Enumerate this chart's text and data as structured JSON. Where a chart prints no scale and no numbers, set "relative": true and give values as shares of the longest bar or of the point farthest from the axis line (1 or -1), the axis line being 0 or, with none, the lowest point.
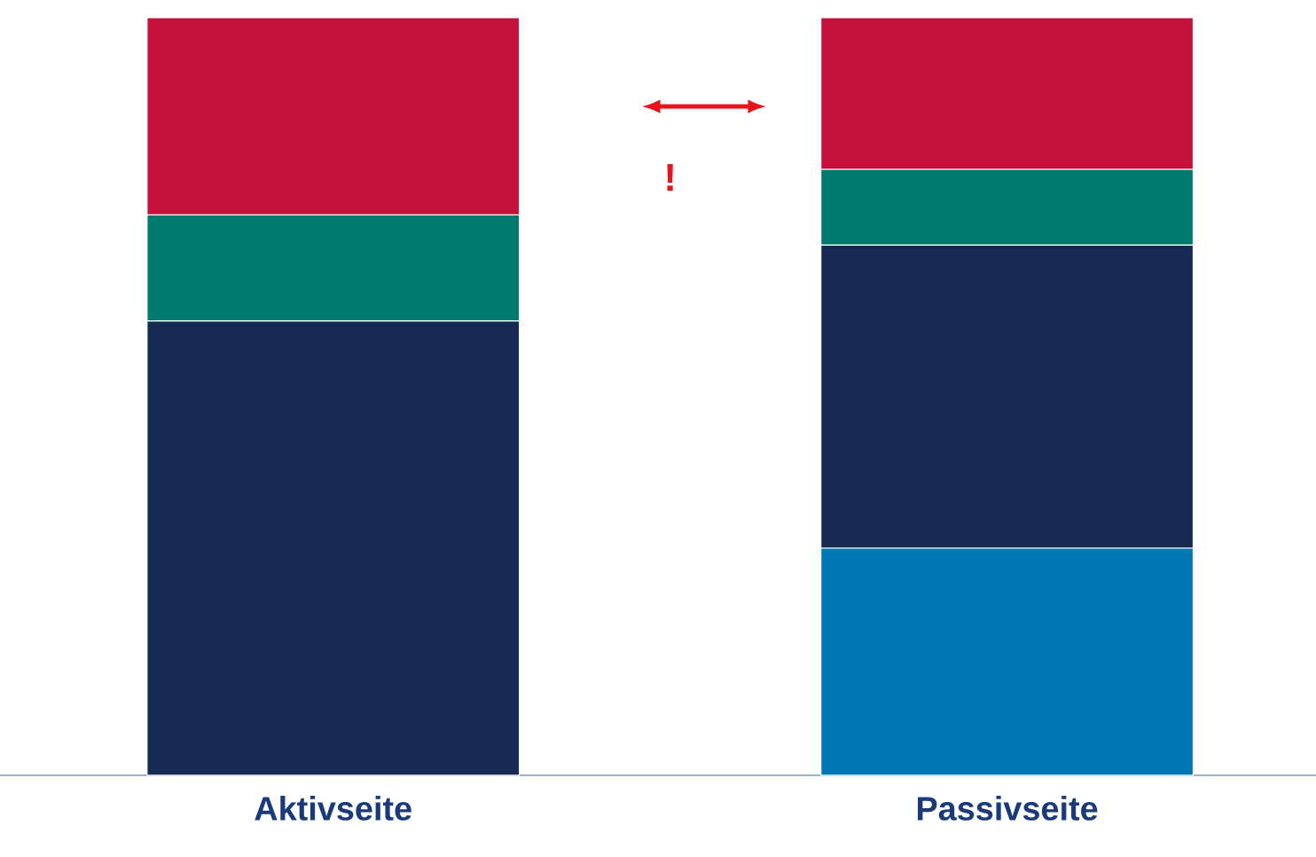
{
  "chart_data": {
    "type": "bar",
    "stacked": true,
    "relative": true,
    "categories": [
      "Aktivseite",
      "Passivseite"
    ],
    "series": [
      {
        "color": "#0077b3",
        "values": [
          null,
          0.3
        ]
      },
      {
        "color": "#152a52",
        "values": [
          0.6,
          0.4
        ]
      },
      {
        "color": "#007a6e",
        "values": [
          0.14,
          0.1
        ]
      },
      {
        "color": "#c4103b",
        "values": [
          0.26,
          0.2
        ]
      }
    ],
    "annotations": [
      "!"
    ]
  }
}
